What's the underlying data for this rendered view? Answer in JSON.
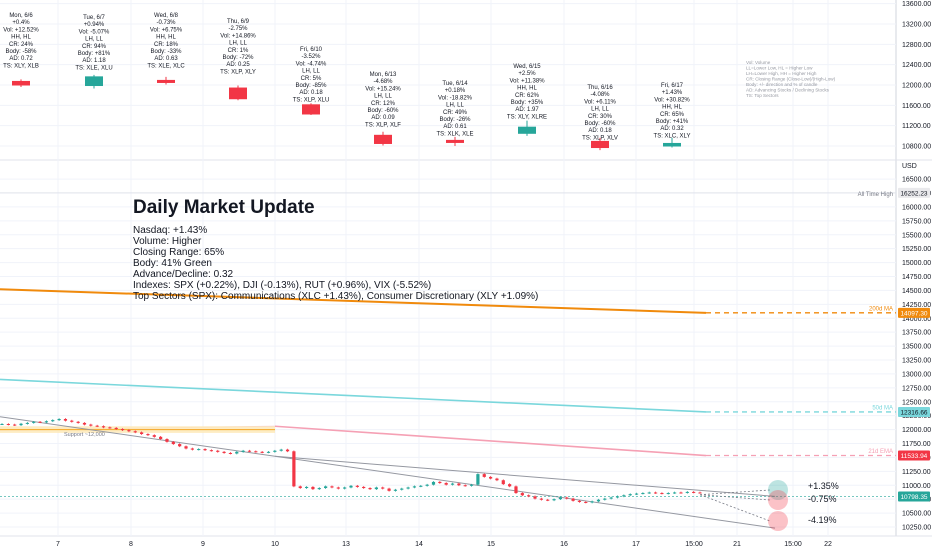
{
  "update": {
    "title": "Daily Market Update",
    "lines": [
      "Nasdaq: +1.43%",
      "Volume: Higher",
      "Closing Range: 65%",
      "Body: 41% Green",
      "Advance/Decline: 0.32",
      "Indexes: SPX (+0.22%), DJI (-0.13%), RUT (+0.96%), VIX (-5.52%)",
      "Top Sectors (SPX): Communications (XLC +1.43%), Consumer Discretionary (XLY +1.09%)"
    ]
  },
  "legend_lines": [
    "Vol: Volume",
    "LL=Lower Low, HL = Higher Low",
    "LH=Lower High, HH = Higher High",
    "CR: Closing Range (Close-Low)/(High-Low)",
    "Body: +/- direction and % of candle",
    "AD: Advancing Stocks / Declining Stocks",
    "TS: Top Sectors"
  ],
  "daily_cards": [
    {
      "lines": [
        "Mon, 6/6",
        "+0.4%",
        "Vol: +12.52%",
        "HH, HL",
        "CR: 24%",
        "Body: -58%",
        "AD: 0.72",
        "TS: XLY, XLB"
      ]
    },
    {
      "lines": [
        "Tue, 6/7",
        "+0.94%",
        "Vol: -5.07%",
        "LH, LL",
        "CR: 94%",
        "Body: +81%",
        "AD: 1.18",
        "TS: XLE, XLU"
      ]
    },
    {
      "lines": [
        "Wed, 6/8",
        "-0.73%",
        "Vol: +6.75%",
        "HH, HL",
        "CR: 18%",
        "Body: -33%",
        "AD: 0.63",
        "TS: XLE, XLC"
      ]
    },
    {
      "lines": [
        "Thu, 6/9",
        "-2.75%",
        "Vol: +14.86%",
        "LH, LL",
        "CR: 1%",
        "Body: -72%",
        "AD: 0.25",
        "TS: XLP, XLY"
      ]
    },
    {
      "lines": [
        "Fri, 6/10",
        "-3.52%",
        "Vol: -4.74%",
        "LH, LL",
        "CR: 5%",
        "Body: -85%",
        "AD: 0.18",
        "TS: XLP, XLU"
      ]
    },
    {
      "lines": [
        "Mon, 6/13",
        "-4.68%",
        "Vol: +15.24%",
        "LH, LL",
        "CR: 12%",
        "Body: -60%",
        "AD: 0.09",
        "TS: XLP, XLF"
      ]
    },
    {
      "lines": [
        "Tue, 6/14",
        "+0.18%",
        "Vol: -18.82%",
        "LH, LL",
        "CR: 49%",
        "Body: -26%",
        "AD: 0.61",
        "TS: XLK, XLE"
      ]
    },
    {
      "lines": [
        "Wed, 6/15",
        "+2.5%",
        "Vol: +11.38%",
        "HH, HL",
        "CR: 62%",
        "Body: +35%",
        "AD: 1.97",
        "TS: XLY, XLRE"
      ]
    },
    {
      "lines": [
        "Thu, 6/16",
        "-4.08%",
        "Vol: +6.11%",
        "LH, LL",
        "CR: 30%",
        "Body: -60%",
        "AD: 0.18",
        "TS: XLP, XLV"
      ]
    },
    {
      "lines": [
        "Fri, 6/17",
        "+1.43%",
        "Vol: +30.82%",
        "HH, HL",
        "CR: 65%",
        "Body: +41%",
        "AD: 0.32",
        "TS: XLC, XLY"
      ]
    }
  ],
  "chart_data": {
    "type": "line",
    "top_panel_axis": {
      "ticks": [
        "13600.00",
        "13200.00",
        "12800.00",
        "12400.00",
        "12000.00",
        "11600.00",
        "11200.00",
        "10800.00"
      ],
      "ylim": [
        10700,
        13620
      ],
      "currency_label": "USD"
    },
    "main_axis": {
      "ticks": [
        "16500.00",
        "16250.00",
        "16000.00",
        "15750.00",
        "15500.00",
        "15250.00",
        "15000.00",
        "14750.00",
        "14500.00",
        "14250.00",
        "14000.00",
        "13750.00",
        "13500.00",
        "13250.00",
        "13000.00",
        "12750.00",
        "12500.00",
        "12250.00",
        "12000.00",
        "11750.00",
        "11500.00",
        "11250.00",
        "11000.00",
        "10750.00",
        "10500.00",
        "10250.00"
      ],
      "ylim": [
        10120,
        16620
      ]
    },
    "x_ticks": [
      "7",
      "8",
      "9",
      "10",
      "13",
      "14",
      "15",
      "16",
      "17",
      "15:00",
      "21",
      "15:00",
      "22"
    ],
    "mini_candles": [
      {
        "o": 12080,
        "c": 11990,
        "h": 12110,
        "l": 11960
      },
      {
        "o": 11980,
        "c": 12170,
        "h": 12200,
        "l": 11930
      },
      {
        "o": 12100,
        "c": 12040,
        "h": 12160,
        "l": 12010
      },
      {
        "o": 11950,
        "c": 11720,
        "h": 11990,
        "l": 11700
      },
      {
        "o": 11620,
        "c": 11420,
        "h": 11640,
        "l": 11410
      },
      {
        "o": 11020,
        "c": 10840,
        "h": 11080,
        "l": 10810
      },
      {
        "o": 10920,
        "c": 10860,
        "h": 10980,
        "l": 10800
      },
      {
        "o": 11040,
        "c": 11180,
        "h": 11300,
        "l": 11000
      },
      {
        "o": 10900,
        "c": 10760,
        "h": 10960,
        "l": 10720
      },
      {
        "o": 10790,
        "c": 10860,
        "h": 10960,
        "l": 10770
      }
    ],
    "intraday_close": [
      12100,
      12090,
      12080,
      12105,
      12120,
      12140,
      12130,
      12150,
      12170,
      12190,
      12160,
      12140,
      12120,
      12090,
      12070,
      12060,
      12040,
      12030,
      12010,
      11990,
      11970,
      11950,
      11920,
      11900,
      11870,
      11830,
      11780,
      11740,
      11700,
      11660,
      11640,
      11650,
      11630,
      11620,
      11600,
      11580,
      11570,
      11600,
      11620,
      11610,
      11600,
      11590,
      11600,
      11620,
      11640,
      11610,
      10980,
      10950,
      10970,
      10930,
      10950,
      10980,
      10960,
      10940,
      10960,
      10990,
      10970,
      10950,
      10930,
      10960,
      10940,
      10900,
      10920,
      10940,
      10960,
      10980,
      10990,
      11010,
      11060,
      11040,
      11010,
      11030,
      11000,
      10990,
      11010,
      11200,
      11150,
      11120,
      11090,
      11020,
      10980,
      10860,
      10820,
      10800,
      10760,
      10740,
      10730,
      10750,
      10780,
      10760,
      10720,
      10700,
      10690,
      10710,
      10740,
      10760,
      10780,
      10800,
      10820,
      10840,
      10850,
      10860,
      10870,
      10860,
      10850,
      10860,
      10870,
      10865,
      10880,
      10870,
      10865
    ],
    "series": [
      {
        "name": "200d MA",
        "color": "#f08a0c",
        "values": [
          14520,
          14097.3
        ]
      },
      {
        "name": "50d MA",
        "color": "#7ad7dc",
        "values": [
          12900,
          12316.66
        ]
      },
      {
        "name": "21d EMA",
        "color": "#f5a0b4",
        "values": [
          12060,
          11533.94
        ]
      }
    ],
    "price_labels": [
      {
        "text": "16252.23",
        "color": "#e9e9ec",
        "text_color": "#131722"
      },
      {
        "text": "14097.30",
        "color": "#f08a0c",
        "text_color": "#ffffff"
      },
      {
        "text": "12316.66",
        "color": "#7ad7dc",
        "text_color": "#131722"
      },
      {
        "text": "11533.94",
        "color": "#f23645",
        "text_color": "#ffffff"
      },
      {
        "text": "10798.35",
        "color": "#26a69a",
        "text_color": "#ffffff"
      }
    ],
    "annotations": {
      "all_time_high": "All Time High",
      "ma200": "200d MA",
      "ma50": "50d MA",
      "ema21": "21d EMA",
      "support": "Support ~12,000"
    },
    "projections": [
      {
        "label": "+1.35%",
        "color": "#26a69a"
      },
      {
        "label": "-0.75%",
        "color": "#f23645"
      },
      {
        "label": "-4.19%",
        "color": "#f23645"
      }
    ],
    "colors": {
      "up": "#26a69a",
      "down": "#f23645",
      "grid": "#f0f3fa"
    }
  }
}
